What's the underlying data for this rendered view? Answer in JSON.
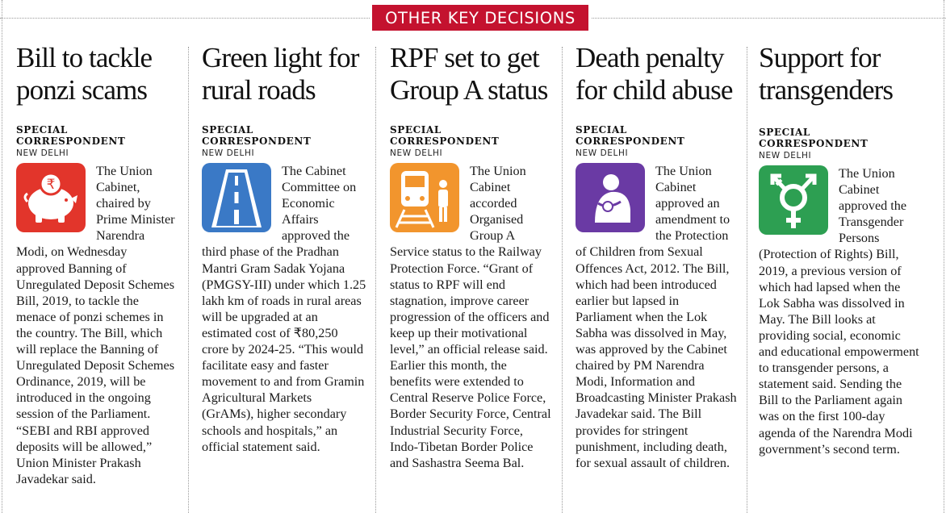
{
  "section": {
    "banner": "OTHER KEY DECISIONS"
  },
  "colors": {
    "banner": "#c4122f",
    "icon_red": "#e2352b",
    "icon_blue": "#3a79c6",
    "icon_orange": "#f2952d",
    "icon_purple": "#6a3aa4",
    "icon_green": "#2d9f52"
  },
  "stories": [
    {
      "headline": "Bill to tackle ponzi scams",
      "byline": "SPECIAL CORRESPONDENT",
      "dateline": "NEW DELHI",
      "icon": "piggy-bank-rupee-icon",
      "body": "The Union Cabinet, chaired by Prime Minister Narendra Modi, on Wednesday approved Banning of Unregulated Deposit Schemes Bill, 2019, to tackle the menace of ponzi schemes in the country. The Bill, which will replace the Banning of Unregulated Deposit Schemes Ordinance, 2019, will be introduced in the ongoing session of the Parliament. “SEBI and RBI approved deposits will be allowed,” Union Minister Prakash Javadekar said."
    },
    {
      "headline": "Green light for rural roads",
      "byline": "SPECIAL CORRESPONDENT",
      "dateline": "NEW DELHI",
      "icon": "road-icon",
      "body": "The Cabinet Committee on Economic Affairs approved the third phase of the Pradhan Mantri Gram Sadak Yojana (PMGSY-III) under which 1.25 lakh km of roads in rural areas will be upgraded at an estimated cost of ₹80,250 crore by 2024-25. “This would facilitate easy and faster movement to and from Gramin Agricultural Markets (GrAMs), higher secondary schools and hospitals,” an official statement said."
    },
    {
      "headline": "RPF set to get Group A status",
      "byline": "SPECIAL CORRESPONDENT",
      "dateline": "NEW DELHI",
      "icon": "train-icon",
      "body": "The Union Cabinet accorded Organised Group A Service status to the Railway Protection Force. “Grant of status to RPF will end stagnation, improve career progression of the officers and keep up their motivational level,” an official release said. Earlier this month, the benefits were extended to Central Reserve Police Force, Border Security Force, Central Industrial Security Force, Indo-Tibetan Border Police and Sashastra Seema Bal."
    },
    {
      "headline": "Death penalty for child abuse",
      "byline": "SPECIAL CORRESPONDENT",
      "dateline": "NEW DELHI",
      "icon": "crouching-child-icon",
      "body": "The Union Cabinet approved an amendment to the Protection of Children from Sexual Offences Act, 2012. The Bill, which had been introduced earlier but lapsed in Parliament when the Lok Sabha was dissolved in May, was approved by the Cabinet chaired by PM Narendra Modi, Information and Broadcasting Minister Prakash Javadekar said. The Bill provides for stringent punishment, including death, for sexual assault of children."
    },
    {
      "headline": "Support for transgenders",
      "byline": "SPECIAL CORRESPONDENT",
      "dateline": "NEW DELHI",
      "icon": "transgender-symbol-icon",
      "body": "The Union Cabinet approved the Transgender Persons (Protection of Rights) Bill, 2019, a previous version of which had lapsed when the Lok Sabha was dissolved in May. The Bill looks at providing social, economic and educational empowerment to transgender persons, a statement said. Sending the Bill to the Parliament again was on the first 100-day agenda of the Narendra Modi government’s second term."
    }
  ]
}
